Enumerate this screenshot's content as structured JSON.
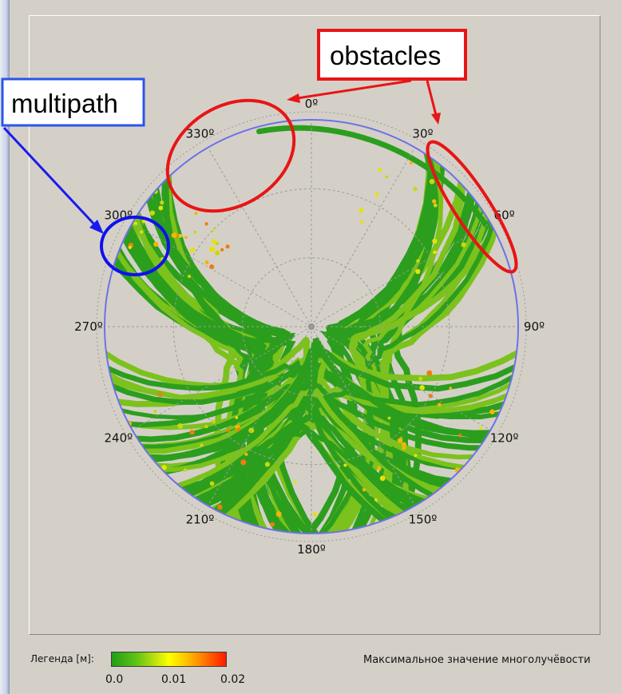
{
  "chart_data": {
    "type": "polar-skyplot",
    "title": "",
    "direction_labels": [
      "0º",
      "30º",
      "60º",
      "90º",
      "120º",
      "150º",
      "180º",
      "210º",
      "240º",
      "270º",
      "300º",
      "330º"
    ],
    "elevation_rings": 3,
    "color_scale": {
      "label": "Легенда [м]:",
      "min": 0.0,
      "max": 0.02,
      "ticks": [
        "0.0",
        "0.01",
        "0.02"
      ],
      "colors": [
        "#1f9e18",
        "#ffff00",
        "#ff1a00"
      ]
    },
    "caption": "Максимальное значение многолучёвости"
  },
  "annotations": {
    "multipath": {
      "text": "multipath",
      "color": "#2a55e8",
      "target_azimuth_deg": 300
    },
    "obstacles": {
      "text": "obstacles",
      "color": "#e81515",
      "target_azimuths_deg": [
        335,
        45
      ]
    }
  },
  "colors": {
    "track_green": "#2c9e1e",
    "track_light": "#7cc21c",
    "ring_blue": "#6e72e6",
    "grid": "#9a9a9a"
  }
}
